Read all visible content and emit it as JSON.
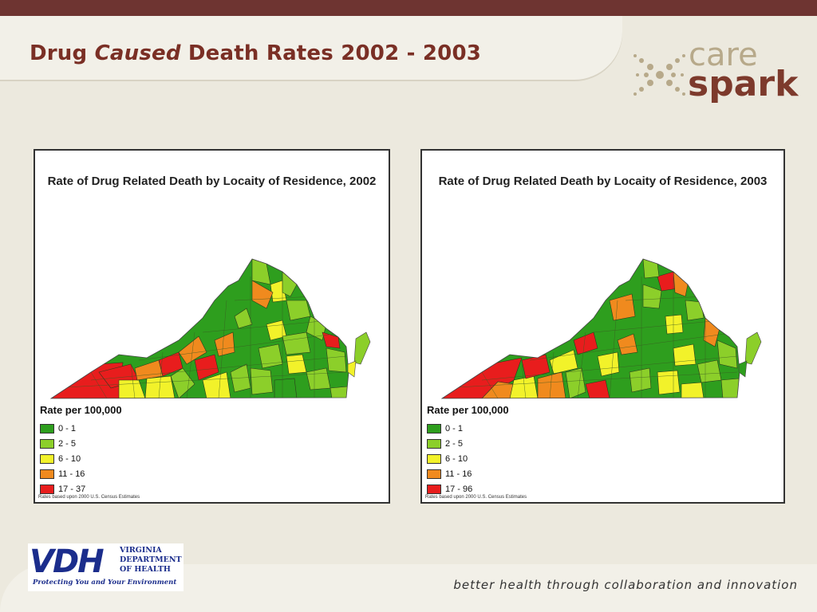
{
  "slide": {
    "title_part1": "Drug ",
    "title_italic": "Caused",
    "title_part2": " Death Rates 2002 - 2003",
    "tagline": "better health through collaboration and innovation"
  },
  "logo": {
    "word1": "care",
    "word2": "spark"
  },
  "vdh": {
    "letters": "VDH",
    "line1": "VIRGINIA",
    "line2": "DEPARTMENT",
    "line3": "OF HEALTH",
    "subtitle": "Protecting You and Your Environment"
  },
  "maps": [
    {
      "title": "Rate of Drug Related Death by Locaity of Residence,  2002",
      "legend_title": "Rate per 100,000",
      "legend": [
        {
          "label": "0 - 1",
          "color": "#2e9e1e"
        },
        {
          "label": "2 - 5",
          "color": "#8ccf2a"
        },
        {
          "label": "6 - 10",
          "color": "#f2f22a"
        },
        {
          "label": "11 - 16",
          "color": "#f08a1e"
        },
        {
          "label": "17 - 37",
          "color": "#e81d1d"
        }
      ],
      "footnote": "Rates based upon 2000 U.S. Census Estimates"
    },
    {
      "title": "Rate of Drug Related Death by Locaity of Residence, 2003",
      "legend_title": "Rate per 100,000",
      "legend": [
        {
          "label": "0 - 1",
          "color": "#2e9e1e"
        },
        {
          "label": "2 - 5",
          "color": "#8ccf2a"
        },
        {
          "label": "6 - 10",
          "color": "#f2f22a"
        },
        {
          "label": "11 - 16",
          "color": "#f08a1e"
        },
        {
          "label": "17 - 96",
          "color": "#e81d1d"
        }
      ],
      "footnote": "Rates based upon 2000 U.S. Census Estimates"
    }
  ]
}
